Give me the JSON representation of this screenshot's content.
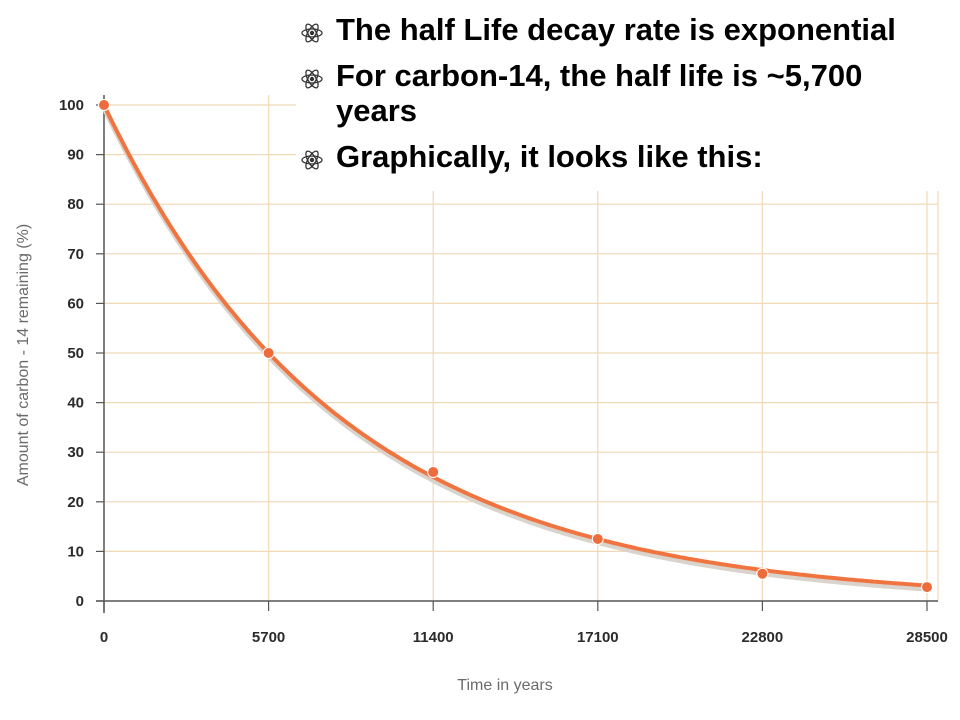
{
  "bullets": [
    {
      "text": "The half Life decay rate is exponential",
      "icon": "atom-icon"
    },
    {
      "text": "For carbon-14, the half life is ~5,700 years",
      "icon": "atom-icon"
    },
    {
      "text": "Graphically, it looks like this:",
      "icon": "atom-icon"
    }
  ],
  "chart_data": {
    "type": "line",
    "title": "",
    "xlabel": "Time in years",
    "ylabel": "Amount of carbon - 14 remaining    (%)",
    "x": [
      0,
      5700,
      11400,
      17100,
      22800,
      28500
    ],
    "series": [
      {
        "values": [
          100,
          50,
          26,
          12.5,
          5.5,
          2.8
        ]
      }
    ],
    "xticks": [
      0,
      5700,
      11400,
      17100,
      22800,
      28500
    ],
    "yticks": [
      0,
      10,
      20,
      30,
      40,
      50,
      60,
      70,
      80,
      90,
      100
    ],
    "xlim": [
      0,
      28500
    ],
    "ylim": [
      0,
      100
    ],
    "grid": true,
    "half_life_years": 5700,
    "colors": {
      "line": "#f07440",
      "marker": "#ee6c3c",
      "grid": "#efd9b6",
      "axis": "#555555"
    }
  }
}
